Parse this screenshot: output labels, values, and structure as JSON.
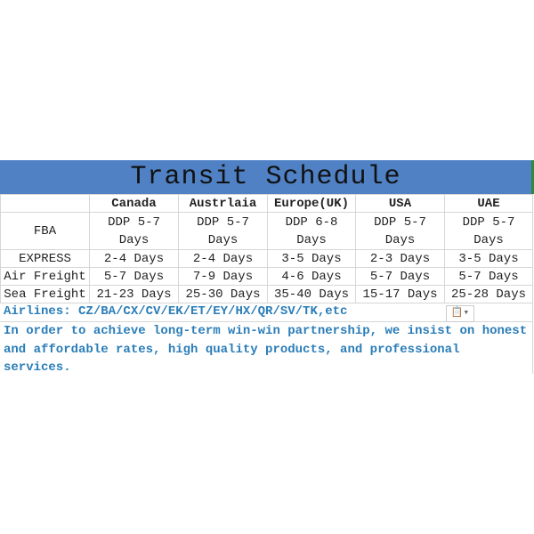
{
  "title": "Transit Schedule",
  "columns": [
    "",
    "Canada",
    "Austrlaia",
    "Europe(UK)",
    "USA",
    "UAE"
  ],
  "rows": [
    {
      "label": "FBA",
      "values": [
        "DDP 5-7 Days",
        "DDP 5-7 Days",
        "DDP 6-8 Days",
        "DDP 5-7 Days",
        "DDP 5-7 Days"
      ]
    },
    {
      "label": "EXPRESS",
      "values": [
        "2-4 Days",
        "2-4 Days",
        "3-5 Days",
        "2-3 Days",
        "3-5 Days"
      ]
    },
    {
      "label": "Air Freight",
      "values": [
        "5-7 Days",
        "7-9 Days",
        "4-6 Days",
        "5-7 Days",
        "5-7 Days"
      ]
    },
    {
      "label": "Sea Freight",
      "values": [
        "21-23 Days",
        "25-30 Days",
        "35-40 Days",
        "15-17 Days",
        "25-28 Days"
      ]
    }
  ],
  "airlines": "Airlines: CZ/BA/CX/CV/EK/ET/EY/HX/QR/SV/TK,etc",
  "paste_icon": "clipboard-paste-options-icon",
  "paragraph": "In order to achieve long-term win-win partnership, we insist on honest and affordable rates, high quality products, and professional services.",
  "colors": {
    "title_band": "#4f81c4",
    "note_text": "#2a7db8"
  }
}
